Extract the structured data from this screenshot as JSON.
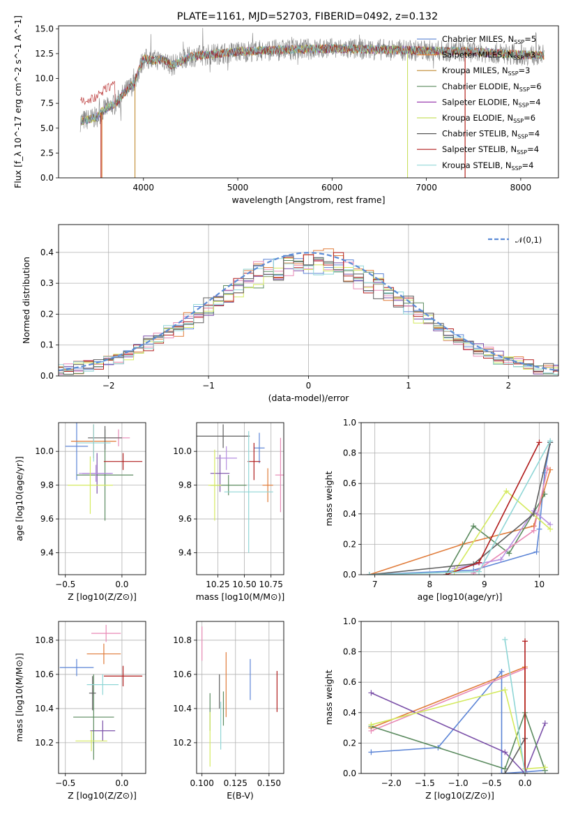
{
  "title": "PLATE=1161, MJD=52703, FIBERID=0492, z=0.132",
  "colors": [
    "#5b84d6",
    "#e07b39",
    "#7a4fa8",
    "#e889b5",
    "#5a8a5e",
    "#b58ee0",
    "#d4ea5e",
    "#5e5e5e",
    "#b01b1b",
    "#8fd6d6"
  ],
  "legend_colors": [
    "#6a8fd8",
    "#e08a40",
    "#c08a30",
    "#5a8a5e",
    "#9b3fb0",
    "#c8e060",
    "#555555",
    "#b01b1b",
    "#8fd6d6"
  ],
  "chart_data": [
    {
      "id": "spectrum",
      "type": "line",
      "title": "PLATE=1161, MJD=52703, FIBERID=0492, z=0.132",
      "xlabel": "wavelength [Angstrom, rest frame]",
      "ylabel": "Flux [f_λ 10^-17 erg cm^-2 s^-1 A^-1]",
      "xlim": [
        3100,
        8400
      ],
      "ylim": [
        0,
        15.3
      ],
      "xticks": [
        4000,
        5000,
        6000,
        7000,
        8000
      ],
      "yticks": [
        0.0,
        2.5,
        5.0,
        7.5,
        10.0,
        12.5,
        15.0
      ],
      "legend_position": "right",
      "series": [
        {
          "name": "Chabrier MILES, N_SSP=5"
        },
        {
          "name": "Salpeter MILES, N_SSP=3"
        },
        {
          "name": "Kroupa MILES, N_SSP=3"
        },
        {
          "name": "Chabrier ELODIE, N_SSP=6"
        },
        {
          "name": "Salpeter ELODIE, N_SSP=4"
        },
        {
          "name": "Kroupa ELODIE, N_SSP=6"
        },
        {
          "name": "Chabrier STELIB, N_SSP=4"
        },
        {
          "name": "Salpeter STELIB, N_SSP=4"
        },
        {
          "name": "Kroupa STELIB, N_SSP=4"
        }
      ],
      "profile_x": [
        3330,
        3500,
        3600,
        3700,
        3800,
        3900,
        4000,
        4100,
        4200,
        4300,
        4500,
        4800,
        5000,
        5500,
        6000,
        6500,
        7000,
        7500,
        8000,
        8250
      ],
      "profile_y": [
        5.7,
        6.1,
        7.0,
        7.4,
        8.6,
        9.5,
        12.0,
        11.8,
        12.0,
        11.3,
        12.2,
        12.5,
        12.7,
        12.9,
        13.0,
        12.9,
        12.8,
        12.7,
        12.4,
        12.3
      ]
    },
    {
      "id": "residuals",
      "type": "line",
      "xlabel": "(data-model)/error",
      "ylabel": "Normed distribution",
      "xlim": [
        -2.5,
        2.5
      ],
      "ylim": [
        0,
        0.49
      ],
      "xticks": [
        -2,
        -1,
        0,
        1,
        2
      ],
      "xticklabels": [
        "−2",
        "−1",
        "0",
        "1",
        "2"
      ],
      "yticks": [
        0.0,
        0.1,
        0.2,
        0.3,
        0.4
      ],
      "legend": "𝒩(0,1)",
      "legend_position": "top-right",
      "grid": true,
      "gaussian": {
        "mean": 0.0,
        "sigma": 1.0
      }
    },
    {
      "id": "age_vs_Z",
      "type": "scatter",
      "xlabel": "Z [log10(Z/Z⊙)]",
      "ylabel": "age [log10(age/yr)]",
      "xlim": [
        -0.56,
        0.21
      ],
      "ylim": [
        9.27,
        10.17
      ],
      "xticks": [
        -0.5,
        0.0
      ],
      "xticklabels": [
        "−0.5",
        "0.0"
      ],
      "yticks": [
        9.4,
        9.6,
        9.8,
        10.0
      ],
      "grid": true,
      "errorbars": [
        {
          "x": -0.4,
          "y": 10.03,
          "xerr": 0.1,
          "yerr": 0.2,
          "color_index": 0
        },
        {
          "x": -0.25,
          "y": 10.06,
          "xerr": 0.2,
          "yerr": 0.1,
          "color_index": 1
        },
        {
          "x": -0.22,
          "y": 9.87,
          "xerr": 0.13,
          "yerr": 0.12,
          "color_index": 2
        },
        {
          "x": -0.03,
          "y": 10.08,
          "xerr": 0.1,
          "yerr": 0.05,
          "color_index": 3
        },
        {
          "x": -0.15,
          "y": 9.86,
          "xerr": 0.25,
          "yerr": 0.27,
          "color_index": 4
        },
        {
          "x": -0.23,
          "y": 9.87,
          "xerr": 0.15,
          "yerr": 0.05,
          "color_index": 5
        },
        {
          "x": -0.28,
          "y": 9.8,
          "xerr": 0.2,
          "yerr": 0.17,
          "color_index": 6
        },
        {
          "x": -0.15,
          "y": 10.08,
          "xerr": 0.15,
          "yerr": 0.07,
          "color_index": 7
        },
        {
          "x": 0.01,
          "y": 9.94,
          "xerr": 0.17,
          "yerr": 0.05,
          "color_index": 8
        },
        {
          "x": -0.25,
          "y": 10.05,
          "xerr": 0.15,
          "yerr": 0.11,
          "color_index": 9
        }
      ]
    },
    {
      "id": "age_vs_mass",
      "type": "scatter",
      "xlabel": "mass [log10(M/M⊙)]",
      "xlim": [
        10.05,
        10.87
      ],
      "ylim": [
        9.27,
        10.17
      ],
      "xticks": [
        10.25,
        10.5,
        10.75
      ],
      "xticklabels": [
        "10.25",
        "10.50",
        "10.75"
      ],
      "yticks": [
        9.4,
        9.6,
        9.8,
        10.0
      ],
      "grid": true,
      "errorbars": [
        {
          "x": 10.64,
          "y": 10.02,
          "xerr": 0.05,
          "yerr": 0.09,
          "color_index": 0
        },
        {
          "x": 10.72,
          "y": 9.8,
          "xerr": 0.05,
          "yerr": 0.1,
          "color_index": 1
        },
        {
          "x": 10.27,
          "y": 9.87,
          "xerr": 0.09,
          "yerr": 0.11,
          "color_index": 2
        },
        {
          "x": 10.84,
          "y": 9.86,
          "xerr": 0.05,
          "yerr": 0.22,
          "color_index": 3
        },
        {
          "x": 10.35,
          "y": 9.8,
          "xerr": 0.17,
          "yerr": 0.06,
          "color_index": 4
        },
        {
          "x": 10.33,
          "y": 9.96,
          "xerr": 0.1,
          "yerr": 0.07,
          "color_index": 5
        },
        {
          "x": 10.22,
          "y": 9.8,
          "xerr": 0.06,
          "yerr": 0.21,
          "color_index": 6
        },
        {
          "x": 10.3,
          "y": 10.09,
          "xerr": 0.25,
          "yerr": 0.07,
          "color_index": 7
        },
        {
          "x": 10.59,
          "y": 9.94,
          "xerr": 0.06,
          "yerr": 0.11,
          "color_index": 8
        },
        {
          "x": 10.54,
          "y": 9.76,
          "xerr": 0.23,
          "yerr": 0.36,
          "color_index": 9
        }
      ]
    },
    {
      "id": "weight_vs_age",
      "type": "line",
      "xlabel": "age [log10(age/yr)]",
      "ylabel": "mass weight",
      "xlim": [
        6.75,
        10.35
      ],
      "ylim": [
        0,
        1.0
      ],
      "xticks": [
        7,
        8,
        9,
        10
      ],
      "yticks": [
        0.0,
        0.2,
        0.4,
        0.6,
        0.8,
        1.0
      ],
      "grid": true,
      "series": [
        {
          "color_index": 0,
          "points": [
            [
              6.9,
              0.0
            ],
            [
              8.8,
              0.03
            ],
            [
              9.95,
              0.15
            ],
            [
              10.0,
              0.3
            ],
            [
              10.1,
              0.67
            ],
            [
              10.2,
              0.87
            ]
          ]
        },
        {
          "color_index": 1,
          "points": [
            [
              6.9,
              0.0
            ],
            [
              8.6,
              0.2
            ],
            [
              9.9,
              0.32
            ],
            [
              10.2,
              0.69
            ]
          ]
        },
        {
          "color_index": 4,
          "points": [
            [
              8.3,
              0.0
            ],
            [
              8.8,
              0.32
            ],
            [
              9.45,
              0.14
            ],
            [
              10.1,
              0.53
            ]
          ]
        },
        {
          "color_index": 3,
          "points": [
            [
              8.8,
              0.01
            ],
            [
              9.9,
              0.29
            ],
            [
              10.15,
              0.7
            ]
          ]
        },
        {
          "color_index": 5,
          "points": [
            [
              8.45,
              0.04
            ],
            [
              9.3,
              0.1
            ],
            [
              9.9,
              0.42
            ],
            [
              10.2,
              0.33
            ]
          ]
        },
        {
          "color_index": 6,
          "points": [
            [
              8.45,
              0.02
            ],
            [
              9.4,
              0.55
            ],
            [
              10.2,
              0.3
            ]
          ]
        },
        {
          "color_index": 7,
          "points": [
            [
              6.9,
              0.0
            ],
            [
              8.8,
              0.07
            ],
            [
              9.9,
              0.4
            ],
            [
              10.2,
              0.87
            ]
          ]
        },
        {
          "color_index": 8,
          "points": [
            [
              8.3,
              0.0
            ],
            [
              8.9,
              0.08
            ],
            [
              10.0,
              0.87
            ]
          ]
        },
        {
          "color_index": 9,
          "points": [
            [
              6.9,
              0.0
            ],
            [
              8.9,
              0.02
            ],
            [
              10.2,
              0.88
            ]
          ]
        }
      ]
    },
    {
      "id": "mass_vs_Z",
      "type": "scatter",
      "xlabel": "Z [log10(Z/Z⊙)]",
      "ylabel": "mass [log10(M/M⊙)]",
      "xlim": [
        -0.56,
        0.21
      ],
      "ylim": [
        10.02,
        10.91
      ],
      "xticks": [
        -0.5,
        0.0
      ],
      "xticklabels": [
        "−0.5",
        "0.0"
      ],
      "yticks": [
        10.2,
        10.4,
        10.6,
        10.8
      ],
      "grid": true,
      "errorbars": [
        {
          "x": -0.4,
          "y": 10.64,
          "xerr": 0.15,
          "yerr": 0.05,
          "color_index": 0
        },
        {
          "x": -0.16,
          "y": 10.72,
          "xerr": 0.15,
          "yerr": 0.06,
          "color_index": 1
        },
        {
          "x": -0.17,
          "y": 10.27,
          "xerr": 0.11,
          "yerr": 0.06,
          "color_index": 2
        },
        {
          "x": -0.14,
          "y": 10.84,
          "xerr": 0.13,
          "yerr": 0.05,
          "color_index": 3
        },
        {
          "x": -0.25,
          "y": 10.35,
          "xerr": 0.18,
          "yerr": 0.25,
          "color_index": 4
        },
        {
          "x": -0.27,
          "y": 10.21,
          "xerr": 0.14,
          "yerr": 0.06,
          "color_index": 6
        },
        {
          "x": -0.26,
          "y": 10.49,
          "xerr": 0.03,
          "yerr": 0.1,
          "color_index": 7
        },
        {
          "x": 0.01,
          "y": 10.59,
          "xerr": 0.17,
          "yerr": 0.06,
          "color_index": 8
        },
        {
          "x": -0.17,
          "y": 10.54,
          "xerr": 0.14,
          "yerr": 0.06,
          "color_index": 9
        }
      ]
    },
    {
      "id": "mass_vs_EBV",
      "type": "scatter",
      "xlabel": "E(B-V)",
      "xlim": [
        0.096,
        0.161
      ],
      "ylim": [
        10.02,
        10.91
      ],
      "xticks": [
        0.1,
        0.125,
        0.15
      ],
      "xticklabels": [
        "0.100",
        "0.125",
        "0.150"
      ],
      "yticks": [
        10.2,
        10.4,
        10.6,
        10.8
      ],
      "grid": true,
      "errorbars": [
        {
          "x": 0.1,
          "y": 10.78,
          "yerr": 0.1,
          "color_index": 3
        },
        {
          "x": 0.106,
          "y": 10.38,
          "yerr": 0.11,
          "color_index": 4
        },
        {
          "x": 0.106,
          "y": 10.22,
          "yerr": 0.16,
          "color_index": 6
        },
        {
          "x": 0.113,
          "y": 10.5,
          "yerr": 0.1,
          "color_index": 7
        },
        {
          "x": 0.114,
          "y": 10.3,
          "yerr": 0.14,
          "color_index": 9
        },
        {
          "x": 0.116,
          "y": 10.4,
          "yerr": 0.1,
          "color_index": 4
        },
        {
          "x": 0.118,
          "y": 10.54,
          "yerr": 0.19,
          "color_index": 1
        },
        {
          "x": 0.136,
          "y": 10.57,
          "yerr": 0.12,
          "color_index": 0
        },
        {
          "x": 0.156,
          "y": 10.5,
          "yerr": 0.12,
          "color_index": 8
        }
      ]
    },
    {
      "id": "weight_vs_Z",
      "type": "line",
      "xlabel": "Z [log10(Z/Z⊙)]",
      "ylabel": "mass weight",
      "xlim": [
        -2.45,
        0.5
      ],
      "ylim": [
        0,
        1.0
      ],
      "xticks": [
        -2.0,
        -1.5,
        -1.0,
        -0.5,
        0.0
      ],
      "xticklabels": [
        "−2.0",
        "−1.5",
        "−1.0",
        "−0.5",
        "0.0"
      ],
      "yticks": [
        0.0,
        0.2,
        0.4,
        0.6,
        0.8,
        1.0
      ],
      "grid": true,
      "series": [
        {
          "color_index": 0,
          "points": [
            [
              -2.3,
              0.14
            ],
            [
              -1.3,
              0.17
            ],
            [
              -0.35,
              0.67
            ],
            [
              -0.35,
              0.0
            ],
            [
              0.0,
              0.01
            ],
            [
              0.3,
              0.02
            ]
          ]
        },
        {
          "color_index": 1,
          "points": [
            [
              -2.3,
              0.3
            ],
            [
              0.0,
              0.7
            ],
            [
              0.0,
              0.0
            ]
          ]
        },
        {
          "color_index": 2,
          "points": [
            [
              -2.3,
              0.53
            ],
            [
              -0.3,
              0.14
            ],
            [
              0.0,
              0.0
            ],
            [
              0.3,
              0.33
            ]
          ]
        },
        {
          "color_index": 3,
          "points": [
            [
              -2.3,
              0.28
            ],
            [
              0.0,
              0.69
            ]
          ]
        },
        {
          "color_index": 4,
          "points": [
            [
              -2.3,
              0.31
            ],
            [
              -0.3,
              0.03
            ],
            [
              0.0,
              0.4
            ],
            [
              0.3,
              0.02
            ]
          ]
        },
        {
          "color_index": 6,
          "points": [
            [
              -2.3,
              0.32
            ],
            [
              -0.3,
              0.55
            ],
            [
              0.0,
              0.03
            ],
            [
              0.3,
              0.04
            ]
          ]
        },
        {
          "color_index": 7,
          "points": [
            [
              -0.3,
              0.0
            ],
            [
              0.0,
              0.23
            ],
            [
              0.0,
              0.0
            ]
          ]
        },
        {
          "color_index": 8,
          "points": [
            [
              0.0,
              0.87
            ],
            [
              0.0,
              0.0
            ]
          ]
        },
        {
          "color_index": 9,
          "points": [
            [
              -0.3,
              0.88
            ],
            [
              0.0,
              0.0
            ]
          ]
        }
      ]
    }
  ]
}
